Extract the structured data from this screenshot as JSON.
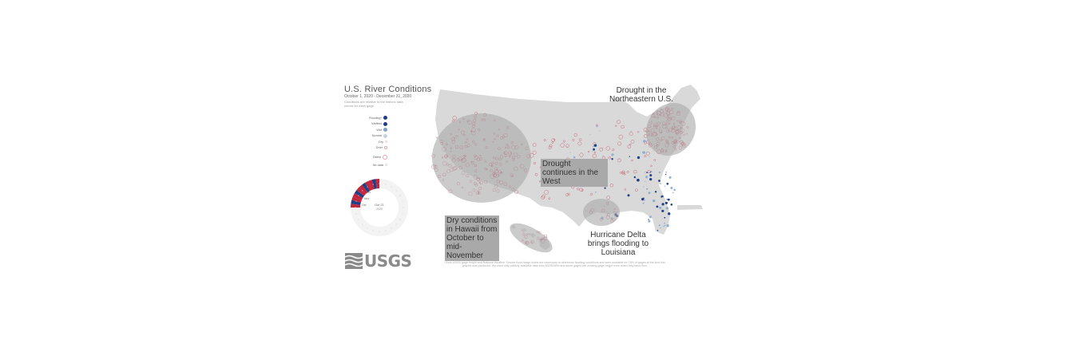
{
  "header": {
    "title": "U.S. River Conditions",
    "dates": "October 1, 2020 - December 31, 2020",
    "note": "Conditions are relative to the historic data record for each gage."
  },
  "legend": {
    "items": [
      {
        "label": "Flooding*",
        "color": "#1f3f86",
        "fill": true
      },
      {
        "label": "Wettest",
        "color": "#1f3f86",
        "fill": true
      },
      {
        "label": "Wet",
        "color": "#7fa2c8",
        "fill": true
      },
      {
        "label": "Normal",
        "color": "#c4d2e2",
        "fill": true
      },
      {
        "label": "Dry",
        "color": "#f2d2d6",
        "fill": false
      },
      {
        "label": "Drier",
        "color": "#e6a3ae",
        "fill": false
      },
      {
        "label": "",
        "color": "#ffffff",
        "fill": false
      },
      {
        "label": "Driest",
        "color": "#c3263c",
        "fill": false
      },
      {
        "label": "No data",
        "color": "#dddddd",
        "fill": false
      }
    ]
  },
  "wheel": {
    "month_labels": [
      "Dec",
      "Nov",
      "Oct"
    ],
    "current_date": "Oct 21",
    "current_year": "2020"
  },
  "logo": {
    "text": "USGS"
  },
  "callouts": {
    "northeast": "Drought in the Northeastern U.S.",
    "west": "Drought continues in the West",
    "hawaii": "Dry conditions in Hawaii from October to mid-November",
    "delta": "Hurricane Delta brings flooding to Louisiana"
  },
  "footnote": "* Both USGS gage height and National Weather Service flood stage levels are necessary to determine flooding conditions and were available for 78% of gages at the time this graphic was produced. We used only publicly available data from NWIS/Web and some gages are missing gage height even when they have flow.",
  "colors": {
    "land": "#d9d9d9",
    "dry": "#c3263c",
    "wet": "#1f3f86",
    "normal": "#8fb0d3",
    "highlight_ellipse": "#a9a9a9"
  }
}
